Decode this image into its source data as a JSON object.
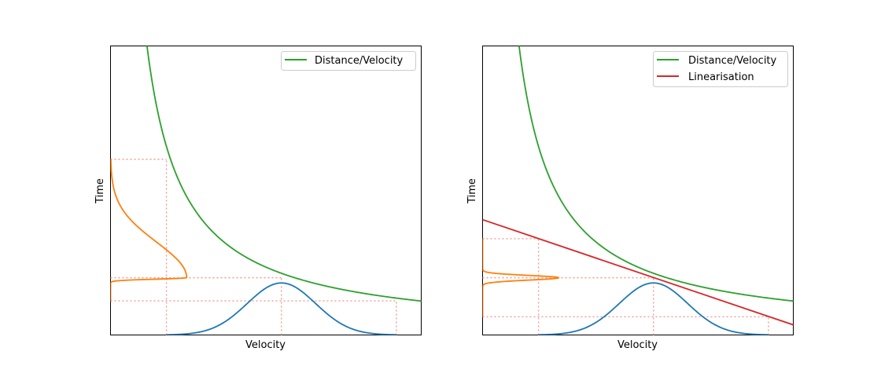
{
  "chart_data": [
    {
      "type": "line",
      "xlabel": "Velocity",
      "ylabel": "Time",
      "xticks": false,
      "yticks": false,
      "xlim": [
        0,
        1
      ],
      "ylim": [
        0,
        1
      ],
      "legend": {
        "placement": "top-right",
        "entries": [
          "Distance/Velocity"
        ]
      },
      "series": [
        {
          "name": "Distance/Velocity",
          "role": "distance-over-velocity",
          "color": "#2ca02c",
          "k": 0.1174,
          "x_start": 0.111
        },
        {
          "role": "velocity-distribution",
          "color": "#1f77b4",
          "mean": 0.55,
          "sigma": 0.1098,
          "x_range": [
            0.18,
            0.92
          ],
          "peak_height": 0.18
        },
        {
          "role": "time-distribution",
          "color": "#ff7f0e",
          "peak_width": 0.245,
          "t_min": 0.118,
          "t_mode": 0.198,
          "t_max": 0.608,
          "left": 0.06,
          "right": 0.3
        }
      ],
      "guides": [
        {
          "x": [
            0,
            0.18
          ],
          "y": [
            0.608,
            0.608
          ]
        },
        {
          "x": [
            0.18,
            0.18
          ],
          "y": [
            0,
            0.608
          ]
        },
        {
          "x": [
            0,
            0.55
          ],
          "y": [
            0.198,
            0.198
          ]
        },
        {
          "x": [
            0.55,
            0.55
          ],
          "y": [
            0,
            0.198
          ]
        },
        {
          "x": [
            0,
            0.92
          ],
          "y": [
            0.118,
            0.118
          ]
        },
        {
          "x": [
            0.92,
            0.92
          ],
          "y": [
            0,
            0.118
          ]
        }
      ]
    },
    {
      "type": "line",
      "xlabel": "Velocity",
      "ylabel": "Time",
      "xticks": false,
      "yticks": false,
      "xlim": [
        0,
        1
      ],
      "ylim": [
        0,
        1
      ],
      "legend": {
        "placement": "top-right",
        "entries": [
          "Distance/Velocity",
          "Linearisation"
        ]
      },
      "series": [
        {
          "name": "Distance/Velocity",
          "role": "distance-over-velocity",
          "color": "#2ca02c",
          "k": 0.1174,
          "x_start": 0.111
        },
        {
          "name": "Linearisation",
          "role": "tangent-line",
          "color": "#d62728",
          "points": [
            [
              0,
              0.399
            ],
            [
              1,
              0.035
            ]
          ]
        },
        {
          "role": "velocity-distribution",
          "color": "#1f77b4",
          "mean": 0.55,
          "sigma": 0.1098,
          "x_range": [
            0.18,
            0.92
          ],
          "peak_height": 0.18
        },
        {
          "role": "time-distribution",
          "color": "#ff7f0e",
          "peak_width": 0.245,
          "t_min": 0.063,
          "t_mode": 0.198,
          "t_max": 0.333,
          "left": 0.06,
          "right": 0.06
        }
      ],
      "guides": [
        {
          "x": [
            0,
            0.18
          ],
          "y": [
            0.333,
            0.333
          ]
        },
        {
          "x": [
            0.18,
            0.18
          ],
          "y": [
            0,
            0.333
          ]
        },
        {
          "x": [
            0,
            0.55
          ],
          "y": [
            0.198,
            0.198
          ]
        },
        {
          "x": [
            0.55,
            0.55
          ],
          "y": [
            0,
            0.198
          ]
        },
        {
          "x": [
            0,
            0.92
          ],
          "y": [
            0.063,
            0.063
          ]
        },
        {
          "x": [
            0.92,
            0.92
          ],
          "y": [
            0,
            0.063
          ]
        }
      ]
    }
  ]
}
